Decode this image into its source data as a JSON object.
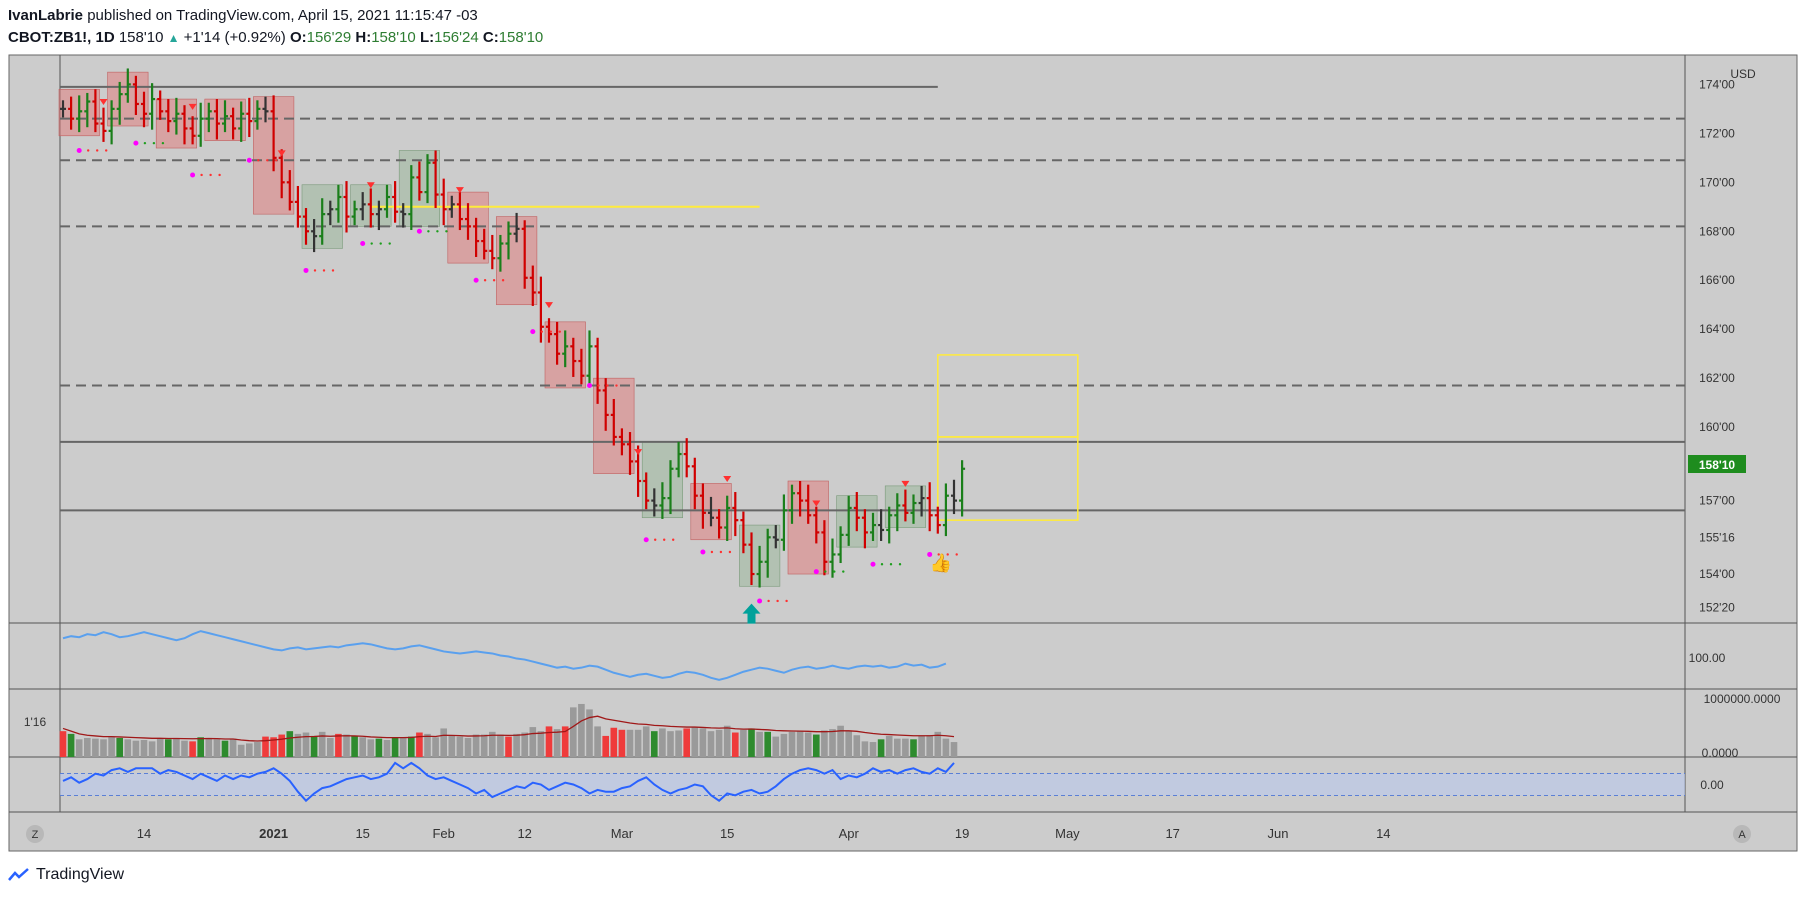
{
  "header": {
    "author": "IvanLabrie",
    "published_text": "published on TradingView.com, April 15, 2021 11:15:47 -03",
    "symbol": "CBOT:ZB1!, 1D",
    "last": "158'10",
    "change": "+1'14 (+0.92%)",
    "o_label": "O:",
    "o_value": "156'29",
    "h_label": "H:",
    "h_value": "158'10",
    "l_label": "L:",
    "l_value": "156'24",
    "c_label": "C:",
    "c_value": "158'10"
  },
  "footer": {
    "brand": "TradingView",
    "left_button": "Z",
    "right_button": "A"
  },
  "colors": {
    "background": "#cccccc",
    "bull": "#1a7f1a",
    "bear": "#d00000",
    "neutral": "#333333",
    "support_line": "#666666",
    "yellow": "#ffeb3b",
    "box_red": "#e08080",
    "box_green": "#9cb89c",
    "price_tag": "#1e8c1e",
    "blue_line": "#5aa0ee",
    "dots_magenta": "#ff00ff",
    "dots_red": "#ff3030",
    "dots_green": "#1e9e1e",
    "arrow_teal": "#00a19a"
  },
  "chart_data": {
    "type": "ohlc",
    "currency": "USD",
    "price_axis_labels": [
      "174'00",
      "172'00",
      "170'00",
      "168'00",
      "166'00",
      "164'00",
      "162'00",
      "160'00",
      "157'00",
      "155'16",
      "154'00",
      "152'20"
    ],
    "price_axis_values": [
      174.0,
      172.0,
      170.0,
      168.0,
      166.0,
      164.0,
      162.0,
      160.0,
      157.0,
      155.5,
      154.0,
      152.625
    ],
    "ylim": [
      152.0,
      175.2
    ],
    "current_price_label": "158'10",
    "current_price": 158.3125,
    "x_tick_labels": [
      "14",
      "2021",
      "15",
      "Feb",
      "12",
      "Mar",
      "15",
      "Apr",
      "19",
      "May",
      "17",
      "Jun",
      "14"
    ],
    "bars": {
      "start_close": 173.0,
      "closes_from_bar_2": [
        172.6,
        172.9,
        173.3,
        172.4,
        172.1,
        173.0,
        173.6,
        174.0,
        173.2,
        172.8,
        173.4,
        172.9,
        172.5,
        172.8,
        172.2,
        171.9,
        172.6,
        172.9,
        172.4,
        172.7,
        172.2,
        172.8,
        172.5,
        173.0,
        172.9,
        171.0,
        170.0,
        169.2,
        168.6,
        168.0,
        167.8,
        168.7,
        168.9,
        169.4,
        168.6,
        168.9,
        169.1,
        168.7,
        168.9,
        169.4,
        168.8,
        168.7,
        170.2,
        169.6,
        170.8,
        169.5,
        168.9,
        169.1,
        168.5,
        168.2,
        167.6,
        167.2,
        166.9,
        167.5,
        167.9,
        168.1,
        166.1,
        165.5,
        164.1,
        163.8,
        163.0,
        163.3,
        162.7,
        162.1,
        163.3,
        161.5,
        160.5,
        159.6,
        159.3,
        158.6,
        157.8,
        157.0,
        156.8,
        157.1,
        158.3,
        158.9,
        158.4,
        157.2,
        156.5,
        156.3,
        155.9,
        156.7,
        156.2,
        155.2,
        154.0,
        154.5,
        155.5,
        155.4,
        156.6,
        157.3,
        157.0,
        156.4,
        155.7,
        154.5,
        154.8,
        155.6,
        156.7,
        156.3,
        155.7,
        156.0,
        155.8,
        156.4,
        156.8,
        156.5,
        156.9,
        157.1,
        156.4,
        156.0,
        157.2,
        157.0,
        158.3
      ]
    },
    "horizontal_levels": [
      173.9,
      172.6,
      170.9,
      169.0,
      168.2,
      161.7,
      159.4,
      156.6
    ],
    "indicator_1": {
      "label": "100.00",
      "values": [
        101.5,
        101.7,
        101.6,
        101.9,
        101.8,
        102.1,
        101.9,
        101.6,
        101.7,
        101.9,
        102.1,
        101.9,
        101.7,
        101.5,
        101.3,
        101.5,
        101.9,
        102.2,
        102.0,
        101.8,
        101.6,
        101.4,
        101.2,
        101.0,
        100.8,
        100.6,
        100.4,
        100.3,
        100.5,
        100.6,
        100.4,
        100.5,
        100.6,
        100.7,
        100.6,
        100.8,
        100.9,
        101.0,
        100.9,
        100.7,
        100.5,
        100.4,
        100.5,
        100.7,
        100.8,
        100.6,
        100.4,
        100.2,
        100.1,
        100.0,
        100.1,
        100.2,
        100.1,
        100.0,
        99.8,
        99.7,
        99.5,
        99.4,
        99.2,
        99.0,
        98.8,
        98.6,
        98.7,
        98.5,
        98.6,
        98.8,
        98.7,
        98.4,
        98.1,
        97.9,
        97.7,
        97.9,
        98.0,
        97.8,
        97.6,
        97.7,
        98.0,
        98.2,
        98.1,
        97.9,
        97.6,
        97.4,
        97.6,
        97.9,
        98.2,
        98.4,
        98.6,
        98.5,
        98.3,
        98.1,
        98.4,
        98.6,
        98.7,
        98.5,
        98.6,
        98.8,
        98.6,
        98.5,
        98.7,
        98.8,
        98.7,
        98.8,
        98.6,
        98.7,
        99.0,
        98.8,
        98.9,
        98.6,
        98.7,
        99.0
      ]
    },
    "volume": {
      "axis_labels": [
        "1000000.0000",
        "0.0000"
      ],
      "left_label": "1'16",
      "ylim": [
        0,
        1000000
      ],
      "values": [
        380000,
        340000,
        260000,
        280000,
        270000,
        260000,
        300000,
        280000,
        260000,
        240000,
        250000,
        230000,
        270000,
        260000,
        280000,
        240000,
        230000,
        290000,
        280000,
        260000,
        240000,
        270000,
        180000,
        200000,
        220000,
        300000,
        290000,
        330000,
        380000,
        340000,
        360000,
        310000,
        370000,
        280000,
        340000,
        330000,
        310000,
        290000,
        260000,
        270000,
        250000,
        280000,
        290000,
        300000,
        360000,
        340000,
        290000,
        420000,
        310000,
        300000,
        280000,
        330000,
        330000,
        370000,
        330000,
        300000,
        340000,
        360000,
        440000,
        380000,
        450000,
        410000,
        450000,
        730000,
        780000,
        700000,
        450000,
        310000,
        430000,
        400000,
        400000,
        400000,
        450000,
        380000,
        420000,
        380000,
        390000,
        420000,
        440000,
        420000,
        380000,
        400000,
        460000,
        360000,
        400000,
        420000,
        370000,
        370000,
        300000,
        340000,
        370000,
        380000,
        360000,
        330000,
        390000,
        410000,
        460000,
        390000,
        320000,
        230000,
        220000,
        260000,
        310000,
        270000,
        270000,
        260000,
        310000,
        320000,
        370000,
        270000,
        220000
      ],
      "colors": [
        "r",
        "g",
        "n",
        "n",
        "n",
        "n",
        "n",
        "g",
        "n",
        "n",
        "n",
        "n",
        "n",
        "g",
        "n",
        "n",
        "r",
        "g",
        "n",
        "n",
        "g",
        "n",
        "n",
        "n",
        "n",
        "r",
        "r",
        "r",
        "g",
        "n",
        "n",
        "g",
        "n",
        "n",
        "r",
        "n",
        "g",
        "n",
        "n",
        "g",
        "n",
        "g",
        "n",
        "g",
        "r",
        "n",
        "n",
        "n",
        "n",
        "n",
        "n",
        "n",
        "n",
        "n",
        "n",
        "r",
        "n",
        "n",
        "n",
        "n",
        "r",
        "n",
        "r",
        "n",
        "n",
        "n",
        "n",
        "r",
        "r",
        "r",
        "n",
        "n",
        "n",
        "g",
        "n",
        "n",
        "n",
        "r",
        "n",
        "n",
        "n",
        "n",
        "n",
        "r",
        "n",
        "g",
        "n",
        "g",
        "n",
        "n",
        "n",
        "n",
        "n",
        "g",
        "n",
        "n",
        "n",
        "n",
        "n",
        "n",
        "n",
        "g",
        "n",
        "n",
        "n",
        "g",
        "n",
        "n",
        "n",
        "n",
        "n"
      ],
      "ma": [
        420000,
        380000,
        340000,
        320000,
        310000,
        300000,
        300000,
        295000,
        290000,
        285000,
        280000,
        275000,
        275000,
        272000,
        272000,
        270000,
        268000,
        270000,
        272000,
        270000,
        265000,
        265000,
        250000,
        240000,
        235000,
        240000,
        250000,
        262000,
        280000,
        290000,
        300000,
        302000,
        310000,
        305000,
        310000,
        312000,
        310000,
        305000,
        295000,
        290000,
        285000,
        285000,
        285000,
        288000,
        300000,
        305000,
        302000,
        320000,
        318000,
        314000,
        308000,
        310000,
        312000,
        320000,
        320000,
        318000,
        320000,
        328000,
        345000,
        350000,
        360000,
        365000,
        375000,
        450000,
        530000,
        580000,
        600000,
        560000,
        540000,
        520000,
        500000,
        485000,
        480000,
        465000,
        460000,
        450000,
        445000,
        440000,
        440000,
        435000,
        428000,
        425000,
        428000,
        415000,
        410000,
        412000,
        405000,
        400000,
        390000,
        385000,
        382000,
        380000,
        378000,
        372000,
        372000,
        375000,
        385000,
        385000,
        378000,
        360000,
        345000,
        335000,
        330000,
        323000,
        318000,
        312000,
        312000,
        313000,
        320000,
        312000,
        300000
      ]
    },
    "oscillator": {
      "label": "0.00",
      "values": [
        0.2,
        0.4,
        0.1,
        0.3,
        0.6,
        0.5,
        0.8,
        0.9,
        0.7,
        0.9,
        0.9,
        0.9,
        0.6,
        0.8,
        0.7,
        0.5,
        0.3,
        0.6,
        0.4,
        0.2,
        0.5,
        0.3,
        0.5,
        0.4,
        0.6,
        0.7,
        0.9,
        0.6,
        0.2,
        -0.4,
        -0.9,
        -0.5,
        -0.2,
        -0.1,
        0.1,
        0.3,
        0.4,
        0.5,
        0.3,
        0.4,
        0.6,
        1.2,
        0.9,
        1.2,
        0.9,
        0.5,
        0.3,
        0.4,
        0.2,
        0.0,
        -0.2,
        -0.5,
        -0.3,
        -0.7,
        -0.5,
        -0.3,
        -0.1,
        -0.2,
        0.1,
        0.0,
        -0.3,
        -0.1,
        0.1,
        0.0,
        -0.2,
        -0.5,
        -0.3,
        -0.4,
        -0.4,
        -0.2,
        -0.1,
        0.2,
        0.4,
        0.0,
        -0.3,
        -0.5,
        -0.3,
        -0.2,
        0.0,
        -0.1,
        -0.6,
        -0.9,
        -0.5,
        -0.6,
        -0.4,
        -0.3,
        -0.5,
        -0.4,
        -0.1,
        0.3,
        0.6,
        0.8,
        0.9,
        0.8,
        0.6,
        0.8,
        0.3,
        0.5,
        0.4,
        0.6,
        0.9,
        0.7,
        0.8,
        0.6,
        0.8,
        0.9,
        0.7,
        0.6,
        0.9,
        0.7,
        1.2
      ]
    }
  }
}
